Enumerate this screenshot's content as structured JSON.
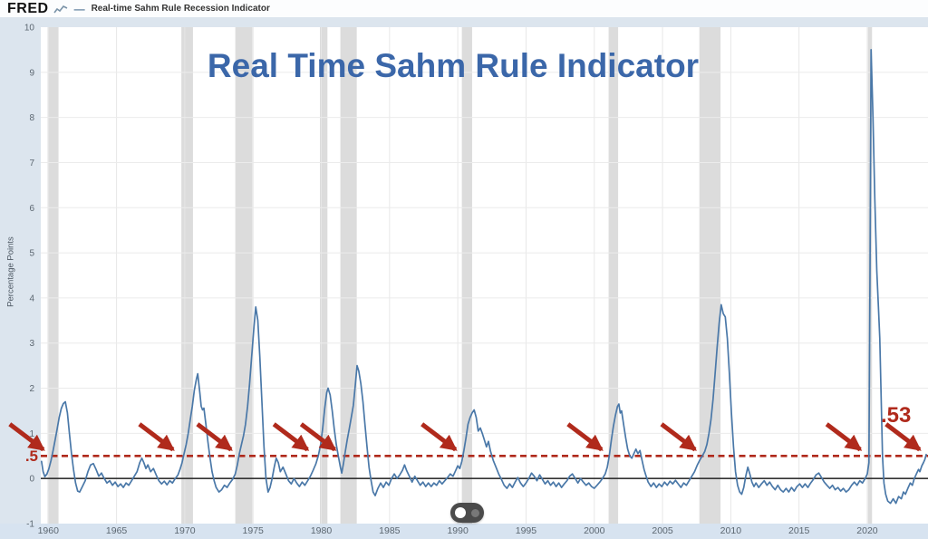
{
  "header": {
    "brand": "FRED",
    "legend_dash": "—",
    "legend_label": "Real-time Sahm Rule Recession Indicator"
  },
  "title": "Real Time Sahm Rule Indicator",
  "annotations": {
    "threshold_label": ".5",
    "latest_label": ".53"
  },
  "icons": {
    "fred_logo_chart": "line-chart-squiggle",
    "toggle_control": "dual-dot-scrubber-toggle"
  },
  "colors": {
    "page_background": "#dce5ee",
    "plot_background": "#ffffff",
    "bottom_strip": "#d7e3f0",
    "title_blue": "#3b67a9",
    "series_line": "#4a78a8",
    "annotation_red": "#b02a1c",
    "recession_band": "#dcdcdc",
    "grid": "#ebebeb",
    "zero_line": "#333333",
    "tick_text": "#5b6670"
  },
  "chart_data": {
    "type": "line",
    "title": "Real Time Sahm Rule Indicator",
    "xlabel": "",
    "ylabel": "Percentage Points",
    "xlim": [
      1959.45,
      2024.45
    ],
    "ylim": [
      -1,
      10
    ],
    "grid": true,
    "x_ticks": [
      1960,
      1965,
      1970,
      1975,
      1980,
      1985,
      1990,
      1995,
      2000,
      2005,
      2010,
      2015,
      2020
    ],
    "y_ticks": [
      10,
      9,
      8,
      7,
      6,
      5,
      4,
      3,
      2,
      1,
      0,
      -1
    ],
    "threshold": 0.5,
    "latest_value": 0.53,
    "recession_bands": [
      [
        1959.95,
        1960.75
      ],
      [
        1969.75,
        1970.6
      ],
      [
        1973.7,
        1974.95
      ],
      [
        1979.9,
        1980.45
      ],
      [
        1981.4,
        1982.6
      ],
      [
        1990.3,
        1991.05
      ],
      [
        2001.05,
        2001.75
      ],
      [
        2007.7,
        2009.25
      ],
      [
        2020.05,
        2020.35
      ]
    ],
    "arrow_targets_year": [
      1960.1,
      1969.6,
      1973.85,
      1979.45,
      1981.45,
      1990.3,
      2001.0,
      2007.85,
      2019.95,
      2024.3
    ],
    "series_name": "Real-time Sahm Rule Recession Indicator",
    "series": [
      [
        1959.5,
        0.38
      ],
      [
        1959.62,
        0.15
      ],
      [
        1959.75,
        0.04
      ],
      [
        1959.9,
        0.1
      ],
      [
        1960.05,
        0.22
      ],
      [
        1960.2,
        0.4
      ],
      [
        1960.35,
        0.62
      ],
      [
        1960.5,
        0.85
      ],
      [
        1960.65,
        1.1
      ],
      [
        1960.8,
        1.35
      ],
      [
        1960.95,
        1.55
      ],
      [
        1961.1,
        1.66
      ],
      [
        1961.25,
        1.7
      ],
      [
        1961.4,
        1.45
      ],
      [
        1961.55,
        1.0
      ],
      [
        1961.7,
        0.55
      ],
      [
        1961.85,
        0.2
      ],
      [
        1962.0,
        -0.1
      ],
      [
        1962.15,
        -0.28
      ],
      [
        1962.3,
        -0.3
      ],
      [
        1962.5,
        -0.18
      ],
      [
        1962.7,
        -0.05
      ],
      [
        1962.9,
        0.15
      ],
      [
        1963.1,
        0.3
      ],
      [
        1963.3,
        0.33
      ],
      [
        1963.5,
        0.2
      ],
      [
        1963.7,
        0.05
      ],
      [
        1963.9,
        0.12
      ],
      [
        1964.1,
        0.0
      ],
      [
        1964.3,
        -0.1
      ],
      [
        1964.5,
        -0.05
      ],
      [
        1964.7,
        -0.15
      ],
      [
        1964.9,
        -0.08
      ],
      [
        1965.1,
        -0.18
      ],
      [
        1965.3,
        -0.12
      ],
      [
        1965.5,
        -0.2
      ],
      [
        1965.7,
        -0.1
      ],
      [
        1965.9,
        -0.15
      ],
      [
        1966.1,
        -0.05
      ],
      [
        1966.3,
        0.05
      ],
      [
        1966.5,
        0.15
      ],
      [
        1966.7,
        0.35
      ],
      [
        1966.85,
        0.45
      ],
      [
        1967.0,
        0.35
      ],
      [
        1967.15,
        0.22
      ],
      [
        1967.3,
        0.3
      ],
      [
        1967.5,
        0.15
      ],
      [
        1967.7,
        0.22
      ],
      [
        1967.9,
        0.08
      ],
      [
        1968.1,
        -0.05
      ],
      [
        1968.3,
        -0.12
      ],
      [
        1968.5,
        -0.06
      ],
      [
        1968.7,
        -0.14
      ],
      [
        1968.9,
        -0.05
      ],
      [
        1969.1,
        -0.1
      ],
      [
        1969.3,
        0.0
      ],
      [
        1969.5,
        0.08
      ],
      [
        1969.65,
        0.2
      ],
      [
        1969.8,
        0.35
      ],
      [
        1969.95,
        0.55
      ],
      [
        1970.1,
        0.75
      ],
      [
        1970.25,
        1.0
      ],
      [
        1970.4,
        1.3
      ],
      [
        1970.55,
        1.6
      ],
      [
        1970.7,
        1.95
      ],
      [
        1970.85,
        2.2
      ],
      [
        1970.95,
        2.32
      ],
      [
        1971.1,
        1.9
      ],
      [
        1971.2,
        1.6
      ],
      [
        1971.3,
        1.52
      ],
      [
        1971.4,
        1.56
      ],
      [
        1971.55,
        1.2
      ],
      [
        1971.7,
        0.8
      ],
      [
        1971.85,
        0.45
      ],
      [
        1972.0,
        0.15
      ],
      [
        1972.15,
        -0.05
      ],
      [
        1972.3,
        -0.2
      ],
      [
        1972.5,
        -0.3
      ],
      [
        1972.7,
        -0.25
      ],
      [
        1972.9,
        -0.15
      ],
      [
        1973.1,
        -0.2
      ],
      [
        1973.3,
        -0.1
      ],
      [
        1973.5,
        -0.02
      ],
      [
        1973.7,
        0.1
      ],
      [
        1973.85,
        0.3
      ],
      [
        1974.0,
        0.55
      ],
      [
        1974.15,
        0.75
      ],
      [
        1974.3,
        0.95
      ],
      [
        1974.45,
        1.2
      ],
      [
        1974.6,
        1.6
      ],
      [
        1974.75,
        2.1
      ],
      [
        1974.9,
        2.7
      ],
      [
        1975.05,
        3.3
      ],
      [
        1975.2,
        3.8
      ],
      [
        1975.35,
        3.5
      ],
      [
        1975.5,
        2.7
      ],
      [
        1975.65,
        1.7
      ],
      [
        1975.8,
        0.7
      ],
      [
        1975.95,
        0.0
      ],
      [
        1976.1,
        -0.3
      ],
      [
        1976.25,
        -0.2
      ],
      [
        1976.4,
        0.0
      ],
      [
        1976.55,
        0.25
      ],
      [
        1976.7,
        0.45
      ],
      [
        1976.85,
        0.35
      ],
      [
        1977.0,
        0.15
      ],
      [
        1977.2,
        0.25
      ],
      [
        1977.4,
        0.1
      ],
      [
        1977.6,
        -0.05
      ],
      [
        1977.8,
        -0.12
      ],
      [
        1978.0,
        0.0
      ],
      [
        1978.2,
        -0.1
      ],
      [
        1978.4,
        -0.18
      ],
      [
        1978.6,
        -0.08
      ],
      [
        1978.8,
        -0.15
      ],
      [
        1979.0,
        -0.05
      ],
      [
        1979.2,
        0.05
      ],
      [
        1979.4,
        0.18
      ],
      [
        1979.6,
        0.32
      ],
      [
        1979.78,
        0.5
      ],
      [
        1979.95,
        0.75
      ],
      [
        1980.1,
        1.1
      ],
      [
        1980.25,
        1.55
      ],
      [
        1980.4,
        1.9
      ],
      [
        1980.5,
        2.0
      ],
      [
        1980.65,
        1.85
      ],
      [
        1980.8,
        1.5
      ],
      [
        1980.95,
        1.1
      ],
      [
        1981.1,
        0.75
      ],
      [
        1981.25,
        0.5
      ],
      [
        1981.4,
        0.25
      ],
      [
        1981.5,
        0.12
      ],
      [
        1981.62,
        0.32
      ],
      [
        1981.75,
        0.58
      ],
      [
        1981.9,
        0.85
      ],
      [
        1982.05,
        1.1
      ],
      [
        1982.2,
        1.35
      ],
      [
        1982.35,
        1.62
      ],
      [
        1982.5,
        2.1
      ],
      [
        1982.62,
        2.5
      ],
      [
        1982.75,
        2.38
      ],
      [
        1982.9,
        2.1
      ],
      [
        1983.05,
        1.7
      ],
      [
        1983.2,
        1.2
      ],
      [
        1983.35,
        0.7
      ],
      [
        1983.5,
        0.25
      ],
      [
        1983.65,
        -0.05
      ],
      [
        1983.8,
        -0.3
      ],
      [
        1983.95,
        -0.38
      ],
      [
        1984.15,
        -0.22
      ],
      [
        1984.35,
        -0.1
      ],
      [
        1984.55,
        -0.2
      ],
      [
        1984.75,
        -0.08
      ],
      [
        1984.95,
        -0.15
      ],
      [
        1985.15,
        0.0
      ],
      [
        1985.35,
        0.1
      ],
      [
        1985.55,
        0.0
      ],
      [
        1985.75,
        0.08
      ],
      [
        1985.95,
        0.18
      ],
      [
        1986.1,
        0.3
      ],
      [
        1986.25,
        0.18
      ],
      [
        1986.45,
        0.05
      ],
      [
        1986.65,
        -0.08
      ],
      [
        1986.85,
        0.05
      ],
      [
        1987.05,
        -0.05
      ],
      [
        1987.25,
        -0.15
      ],
      [
        1987.45,
        -0.08
      ],
      [
        1987.65,
        -0.18
      ],
      [
        1987.85,
        -0.1
      ],
      [
        1988.05,
        -0.18
      ],
      [
        1988.25,
        -0.1
      ],
      [
        1988.45,
        -0.15
      ],
      [
        1988.65,
        -0.05
      ],
      [
        1988.85,
        -0.12
      ],
      [
        1989.05,
        -0.05
      ],
      [
        1989.25,
        0.02
      ],
      [
        1989.45,
        0.1
      ],
      [
        1989.65,
        0.05
      ],
      [
        1989.85,
        0.18
      ],
      [
        1990.0,
        0.28
      ],
      [
        1990.15,
        0.22
      ],
      [
        1990.3,
        0.38
      ],
      [
        1990.45,
        0.62
      ],
      [
        1990.6,
        0.9
      ],
      [
        1990.75,
        1.2
      ],
      [
        1990.9,
        1.35
      ],
      [
        1991.05,
        1.45
      ],
      [
        1991.2,
        1.52
      ],
      [
        1991.35,
        1.35
      ],
      [
        1991.5,
        1.05
      ],
      [
        1991.65,
        1.12
      ],
      [
        1991.8,
        1.0
      ],
      [
        1991.95,
        0.85
      ],
      [
        1992.1,
        0.7
      ],
      [
        1992.25,
        0.82
      ],
      [
        1992.4,
        0.6
      ],
      [
        1992.6,
        0.4
      ],
      [
        1992.8,
        0.25
      ],
      [
        1993.0,
        0.1
      ],
      [
        1993.2,
        -0.02
      ],
      [
        1993.4,
        -0.15
      ],
      [
        1993.6,
        -0.22
      ],
      [
        1993.8,
        -0.12
      ],
      [
        1994.0,
        -0.2
      ],
      [
        1994.2,
        -0.08
      ],
      [
        1994.4,
        0.02
      ],
      [
        1994.6,
        -0.1
      ],
      [
        1994.8,
        -0.18
      ],
      [
        1995.0,
        -0.1
      ],
      [
        1995.2,
        0.0
      ],
      [
        1995.4,
        0.12
      ],
      [
        1995.6,
        0.05
      ],
      [
        1995.8,
        -0.05
      ],
      [
        1996.0,
        0.08
      ],
      [
        1996.2,
        -0.02
      ],
      [
        1996.4,
        -0.12
      ],
      [
        1996.6,
        -0.05
      ],
      [
        1996.8,
        -0.15
      ],
      [
        1997.0,
        -0.08
      ],
      [
        1997.2,
        -0.18
      ],
      [
        1997.4,
        -0.1
      ],
      [
        1997.6,
        -0.2
      ],
      [
        1997.8,
        -0.12
      ],
      [
        1998.0,
        -0.05
      ],
      [
        1998.2,
        0.05
      ],
      [
        1998.4,
        0.1
      ],
      [
        1998.6,
        0.0
      ],
      [
        1998.8,
        -0.1
      ],
      [
        1999.0,
        0.0
      ],
      [
        1999.2,
        -0.08
      ],
      [
        1999.4,
        -0.15
      ],
      [
        1999.6,
        -0.1
      ],
      [
        1999.8,
        -0.18
      ],
      [
        2000.0,
        -0.22
      ],
      [
        2000.2,
        -0.15
      ],
      [
        2000.4,
        -0.08
      ],
      [
        2000.6,
        0.0
      ],
      [
        2000.8,
        0.1
      ],
      [
        2000.95,
        0.25
      ],
      [
        2001.1,
        0.5
      ],
      [
        2001.25,
        0.85
      ],
      [
        2001.4,
        1.15
      ],
      [
        2001.55,
        1.4
      ],
      [
        2001.7,
        1.6
      ],
      [
        2001.8,
        1.65
      ],
      [
        2001.9,
        1.45
      ],
      [
        2002.0,
        1.5
      ],
      [
        2002.15,
        1.2
      ],
      [
        2002.3,
        0.9
      ],
      [
        2002.45,
        0.65
      ],
      [
        2002.6,
        0.5
      ],
      [
        2002.75,
        0.45
      ],
      [
        2002.9,
        0.55
      ],
      [
        2003.05,
        0.65
      ],
      [
        2003.2,
        0.55
      ],
      [
        2003.35,
        0.62
      ],
      [
        2003.5,
        0.4
      ],
      [
        2003.65,
        0.2
      ],
      [
        2003.8,
        0.05
      ],
      [
        2003.95,
        -0.08
      ],
      [
        2004.15,
        -0.18
      ],
      [
        2004.35,
        -0.1
      ],
      [
        2004.55,
        -0.2
      ],
      [
        2004.75,
        -0.12
      ],
      [
        2004.95,
        -0.18
      ],
      [
        2005.15,
        -0.08
      ],
      [
        2005.35,
        -0.15
      ],
      [
        2005.55,
        -0.06
      ],
      [
        2005.75,
        -0.12
      ],
      [
        2005.95,
        -0.04
      ],
      [
        2006.15,
        -0.12
      ],
      [
        2006.35,
        -0.2
      ],
      [
        2006.55,
        -0.1
      ],
      [
        2006.75,
        -0.15
      ],
      [
        2006.95,
        -0.05
      ],
      [
        2007.15,
        0.05
      ],
      [
        2007.35,
        0.15
      ],
      [
        2007.55,
        0.3
      ],
      [
        2007.75,
        0.42
      ],
      [
        2007.95,
        0.52
      ],
      [
        2008.1,
        0.6
      ],
      [
        2008.25,
        0.75
      ],
      [
        2008.4,
        1.0
      ],
      [
        2008.55,
        1.3
      ],
      [
        2008.7,
        1.75
      ],
      [
        2008.85,
        2.3
      ],
      [
        2009.0,
        2.9
      ],
      [
        2009.15,
        3.45
      ],
      [
        2009.3,
        3.85
      ],
      [
        2009.45,
        3.65
      ],
      [
        2009.6,
        3.58
      ],
      [
        2009.75,
        3.1
      ],
      [
        2009.9,
        2.3
      ],
      [
        2010.05,
        1.45
      ],
      [
        2010.2,
        0.7
      ],
      [
        2010.35,
        0.15
      ],
      [
        2010.5,
        -0.15
      ],
      [
        2010.65,
        -0.3
      ],
      [
        2010.8,
        -0.35
      ],
      [
        2010.95,
        -0.2
      ],
      [
        2011.1,
        0.05
      ],
      [
        2011.25,
        0.25
      ],
      [
        2011.4,
        0.1
      ],
      [
        2011.55,
        -0.08
      ],
      [
        2011.7,
        -0.18
      ],
      [
        2011.85,
        -0.1
      ],
      [
        2012.05,
        -0.2
      ],
      [
        2012.25,
        -0.12
      ],
      [
        2012.45,
        -0.05
      ],
      [
        2012.65,
        -0.15
      ],
      [
        2012.85,
        -0.08
      ],
      [
        2013.05,
        -0.18
      ],
      [
        2013.25,
        -0.25
      ],
      [
        2013.45,
        -0.15
      ],
      [
        2013.65,
        -0.25
      ],
      [
        2013.85,
        -0.3
      ],
      [
        2014.05,
        -0.22
      ],
      [
        2014.25,
        -0.3
      ],
      [
        2014.45,
        -0.2
      ],
      [
        2014.65,
        -0.28
      ],
      [
        2014.85,
        -0.18
      ],
      [
        2015.05,
        -0.12
      ],
      [
        2015.25,
        -0.2
      ],
      [
        2015.45,
        -0.12
      ],
      [
        2015.65,
        -0.2
      ],
      [
        2015.85,
        -0.1
      ],
      [
        2016.05,
        -0.02
      ],
      [
        2016.25,
        0.08
      ],
      [
        2016.45,
        0.12
      ],
      [
        2016.65,
        0.02
      ],
      [
        2016.85,
        -0.08
      ],
      [
        2017.05,
        -0.15
      ],
      [
        2017.25,
        -0.22
      ],
      [
        2017.45,
        -0.15
      ],
      [
        2017.65,
        -0.25
      ],
      [
        2017.85,
        -0.2
      ],
      [
        2018.05,
        -0.28
      ],
      [
        2018.25,
        -0.22
      ],
      [
        2018.45,
        -0.3
      ],
      [
        2018.65,
        -0.25
      ],
      [
        2018.85,
        -0.15
      ],
      [
        2019.05,
        -0.08
      ],
      [
        2019.25,
        -0.15
      ],
      [
        2019.45,
        -0.05
      ],
      [
        2019.65,
        -0.1
      ],
      [
        2019.85,
        0.0
      ],
      [
        2020.0,
        0.1
      ],
      [
        2020.12,
        0.35
      ],
      [
        2020.2,
        4.5
      ],
      [
        2020.28,
        9.5
      ],
      [
        2020.42,
        8.0
      ],
      [
        2020.55,
        6.2
      ],
      [
        2020.7,
        4.6
      ],
      [
        2020.82,
        3.8
      ],
      [
        2020.92,
        3.1
      ],
      [
        2021.02,
        1.8
      ],
      [
        2021.12,
        0.5
      ],
      [
        2021.22,
        -0.1
      ],
      [
        2021.35,
        -0.35
      ],
      [
        2021.5,
        -0.5
      ],
      [
        2021.7,
        -0.55
      ],
      [
        2021.9,
        -0.45
      ],
      [
        2022.1,
        -0.55
      ],
      [
        2022.3,
        -0.4
      ],
      [
        2022.5,
        -0.45
      ],
      [
        2022.65,
        -0.3
      ],
      [
        2022.8,
        -0.35
      ],
      [
        2023.0,
        -0.2
      ],
      [
        2023.15,
        -0.1
      ],
      [
        2023.3,
        -0.15
      ],
      [
        2023.45,
        0.0
      ],
      [
        2023.6,
        0.1
      ],
      [
        2023.75,
        0.2
      ],
      [
        2023.85,
        0.15
      ],
      [
        2024.0,
        0.28
      ],
      [
        2024.12,
        0.35
      ],
      [
        2024.22,
        0.42
      ],
      [
        2024.32,
        0.53
      ]
    ]
  }
}
